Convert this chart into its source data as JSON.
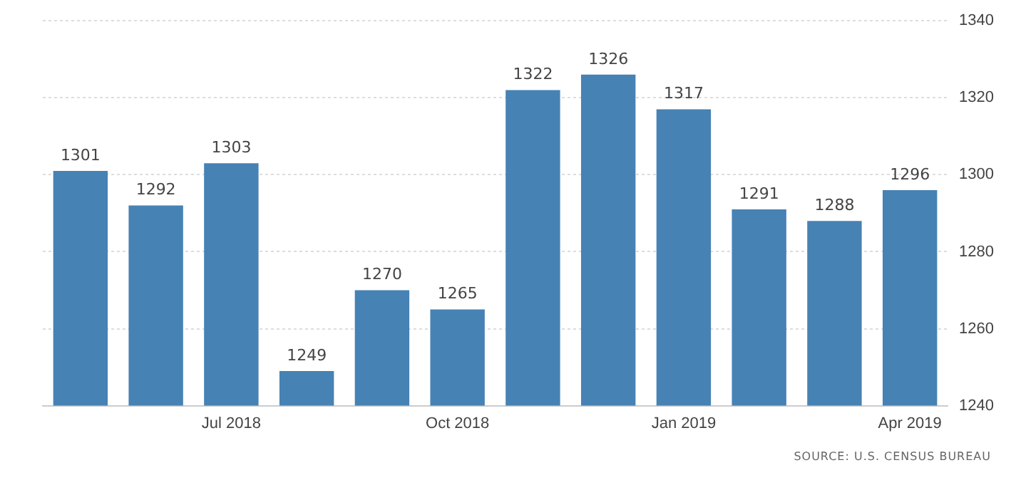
{
  "chart_data": {
    "type": "bar",
    "categories": [
      null,
      null,
      "Jul 2018",
      null,
      null,
      "Oct 2018",
      null,
      null,
      "Jan 2019",
      null,
      null,
      "Apr 2019"
    ],
    "values": [
      1301,
      1292,
      1303,
      1249,
      1270,
      1265,
      1322,
      1326,
      1317,
      1291,
      1288,
      1296
    ],
    "color": "#4682b4",
    "ylim": [
      1240,
      1340
    ],
    "yticks": [
      1240,
      1260,
      1280,
      1300,
      1320,
      1340
    ],
    "grid": "y",
    "legend": false,
    "data_labels": true,
    "annotations": [
      "SOURCE: U.S. CENSUS BUREAU"
    ]
  }
}
